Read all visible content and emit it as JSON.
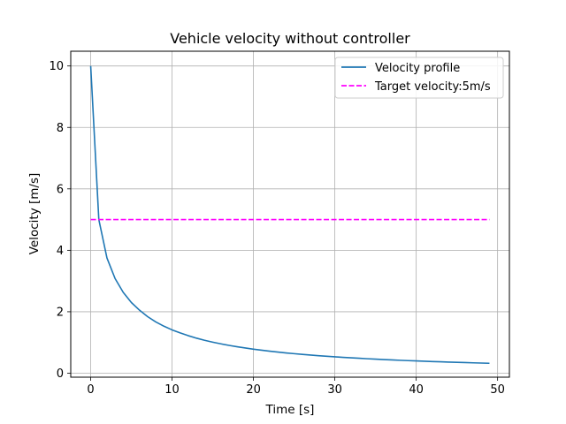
{
  "chart_data": {
    "type": "line",
    "title": "Vehicle velocity without controller",
    "xlabel": "Time [s]",
    "ylabel": "Velocity [m/s]",
    "xlim": [
      -2.45,
      51.45
    ],
    "ylim": [
      -0.13,
      10.48
    ],
    "xticks": [
      0,
      10,
      20,
      30,
      40,
      50
    ],
    "yticks": [
      0,
      2,
      4,
      6,
      8,
      10
    ],
    "xtick_labels": [
      "0",
      "10",
      "20",
      "30",
      "40",
      "50"
    ],
    "ytick_labels": [
      "0",
      "2",
      "4",
      "6",
      "8",
      "10"
    ],
    "grid": true,
    "legend_position": "top-right",
    "series": [
      {
        "name": "Velocity profile",
        "color": "#1f77b4",
        "style": "solid",
        "x": [
          0,
          1,
          2,
          3,
          4,
          5,
          6,
          7,
          8,
          9,
          10,
          11,
          12,
          13,
          14,
          15,
          16,
          17,
          18,
          19,
          20,
          21,
          22,
          23,
          24,
          25,
          26,
          27,
          28,
          29,
          30,
          31,
          32,
          33,
          34,
          35,
          36,
          37,
          38,
          39,
          40,
          41,
          42,
          43,
          44,
          45,
          46,
          47,
          48,
          49
        ],
        "y": [
          10.0,
          5.0,
          3.75,
          3.08,
          2.63,
          2.3,
          2.05,
          1.84,
          1.67,
          1.53,
          1.41,
          1.31,
          1.22,
          1.14,
          1.07,
          1.01,
          0.955,
          0.905,
          0.86,
          0.82,
          0.782,
          0.748,
          0.716,
          0.687,
          0.66,
          0.635,
          0.612,
          0.59,
          0.57,
          0.551,
          0.533,
          0.516,
          0.5,
          0.485,
          0.47,
          0.457,
          0.444,
          0.432,
          0.42,
          0.409,
          0.399,
          0.389,
          0.379,
          0.37,
          0.361,
          0.353,
          0.345,
          0.337,
          0.33,
          0.323
        ]
      },
      {
        "name": "Target velocity:5m/s",
        "color": "#ff00ff",
        "style": "dashed",
        "x": [
          0,
          49
        ],
        "y": [
          5,
          5
        ]
      }
    ]
  }
}
